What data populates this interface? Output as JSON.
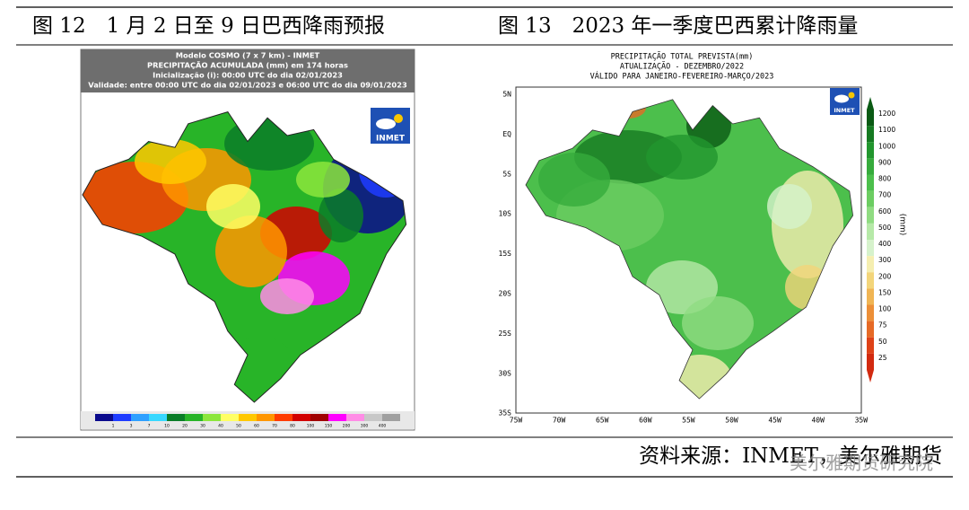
{
  "captions": [
    "图 12　1 月 2 日至 9 日巴西降雨预报",
    "图 13　2023 年一季度巴西累计降雨量"
  ],
  "left_map": {
    "header": [
      "Modelo COSMO (7 x 7 km) - INMET",
      "PRECIPITAÇÃO ACUMULADA (mm) em 174 horas",
      "Inicialização (i): 00:00 UTC do dia 02/01/2023",
      "Validade: entre 00:00 UTC do dia 02/01/2023 e 06:00 UTC do dia 09/01/2023"
    ],
    "logo": "INMET",
    "legend": {
      "labels": [
        1,
        3,
        7,
        10,
        20,
        30,
        40,
        50,
        60,
        70,
        80,
        100,
        150,
        200,
        300,
        400
      ],
      "colors": [
        "#0a0a8c",
        "#1e3cff",
        "#2ea0ff",
        "#38d8ff",
        "#0a7d28",
        "#28b428",
        "#8ce63c",
        "#ffff64",
        "#ffc800",
        "#ff9600",
        "#ff3c00",
        "#d20000",
        "#a00000",
        "#ff00ff",
        "#ff8ce6",
        "#c8c8c8",
        "#a0a0a0"
      ]
    }
  },
  "right_map": {
    "title": [
      "PRECIPITAÇÃO TOTAL PREVISTA(mm)",
      "ATUALIZAÇÃO - DEZEMBRO/2022",
      "VÁLIDO PARA JANEIRO-FEVEREIRO-MARÇO/2023"
    ],
    "logo": "INMET",
    "y_labels": [
      "5N",
      "EQ",
      "5S",
      "10S",
      "15S",
      "20S",
      "25S",
      "30S",
      "35S"
    ],
    "x_labels": [
      "75W",
      "70W",
      "65W",
      "60W",
      "55W",
      "50W",
      "45W",
      "40W",
      "35W"
    ],
    "legend": {
      "unit": "(mm)",
      "labels": [
        1200,
        1100,
        1000,
        900,
        800,
        700,
        600,
        500,
        400,
        300,
        200,
        150,
        100,
        75,
        50,
        25
      ],
      "colors": [
        "#0a5a14",
        "#167a22",
        "#22962e",
        "#36ab3c",
        "#4cbf4c",
        "#6ccd62",
        "#90dc82",
        "#b6e9a8",
        "#d6f2cc",
        "#f5eeb0",
        "#f3d57a",
        "#f0b554",
        "#ec8f38",
        "#e66a26",
        "#de4218",
        "#d22a10"
      ]
    }
  },
  "source": "资料来源：INMET，美尔雅期货",
  "watermark": "美尔雅期货研究院"
}
